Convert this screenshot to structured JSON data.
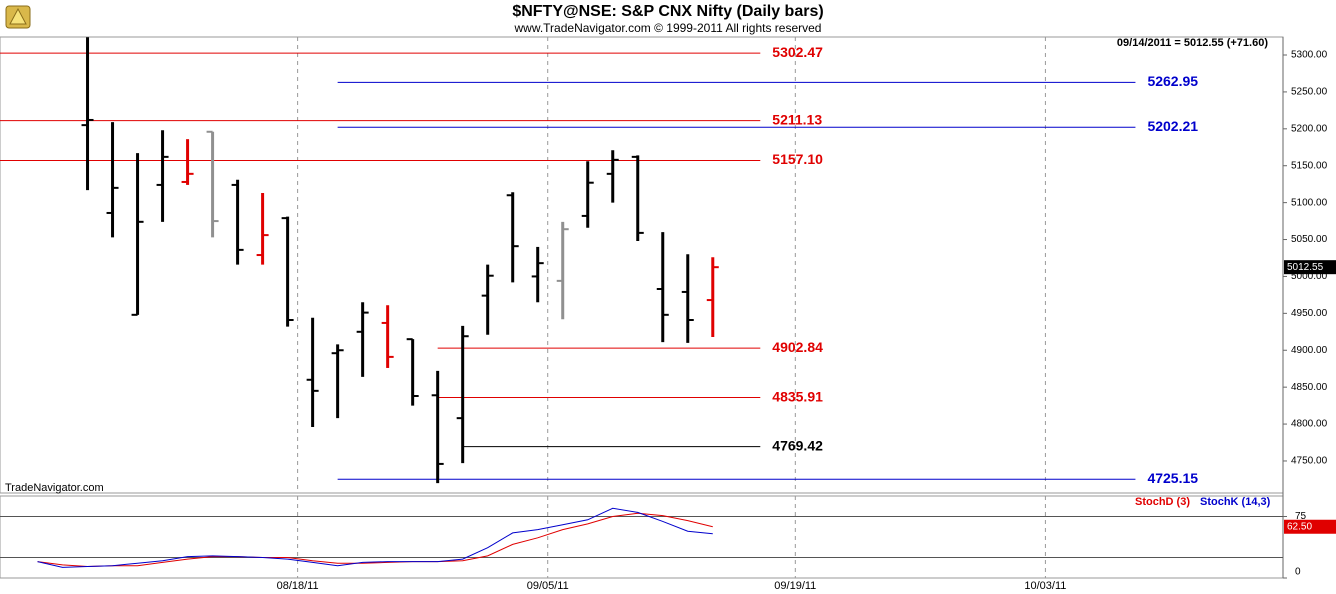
{
  "chart_data": [
    {
      "type": "ohlc",
      "title": "$NFTY@NSE:  S&P CNX Nifty  (Daily bars)",
      "subtitle": "www.TradeNavigator.com © 1999-2011 All rights reserved",
      "info": "09/14/2011 = 5012.55 (+71.60)",
      "watermark": "TradeNavigator.com",
      "x": [
        0,
        1,
        2,
        3,
        4,
        5,
        6,
        7,
        8,
        9,
        10,
        11,
        12,
        13,
        14,
        15,
        16,
        17,
        18,
        19,
        20,
        21,
        22,
        23,
        24,
        25
      ],
      "open": [
        5205,
        5086,
        4948,
        5124,
        5128,
        5196,
        5124,
        5029,
        5079,
        4860,
        4896,
        4925,
        4937,
        4915,
        4839,
        4808,
        4974,
        5110,
        5000,
        4994,
        5082,
        5139,
        5162,
        4983,
        4979,
        4968
      ],
      "high": [
        5324,
        5209,
        5167,
        5198,
        5186,
        5196,
        5131,
        5113,
        5081,
        4944,
        4908,
        4965,
        4961,
        4915,
        4872,
        4933,
        5016,
        5114,
        5040,
        5074,
        5156,
        5171,
        5164,
        5060,
        5030,
        5026
      ],
      "low": [
        5117,
        5053,
        4948,
        5074,
        5124,
        5053,
        5016,
        5016,
        4932,
        4796,
        4808,
        4864,
        4876,
        4825,
        4720,
        4747,
        4921,
        4992,
        4965,
        4942,
        5066,
        5100,
        5048,
        4911,
        4910,
        4918
      ],
      "close": [
        5212,
        5120,
        5074,
        5162,
        5139,
        5075,
        5036,
        5056,
        4941,
        4845,
        4900,
        4951,
        4891,
        4838,
        4746,
        4919,
        5001,
        5041,
        5018,
        5064,
        5127,
        5158,
        5059,
        4948,
        4941,
        5012.55
      ],
      "colors": [
        "#000000",
        "#000000",
        "#000000",
        "#000000",
        "#e00000",
        "#909090",
        "#000000",
        "#e00000",
        "#000000",
        "#000000",
        "#000000",
        "#000000",
        "#e00000",
        "#000000",
        "#000000",
        "#000000",
        "#000000",
        "#000000",
        "#000000",
        "#909090",
        "#000000",
        "#000000",
        "#000000",
        "#000000",
        "#000000",
        "#e00000"
      ],
      "last_price": {
        "value": 5012.55,
        "label": "5012.55"
      },
      "levels": [
        {
          "value": 5302.47,
          "label": "5302.47",
          "color": "#e00000",
          "x_range": [
            -3.5,
            26.9
          ]
        },
        {
          "value": 5262.95,
          "label": "5262.95",
          "color": "#0000cc",
          "x_range": [
            10,
            41.9
          ]
        },
        {
          "value": 5211.13,
          "label": "5211.13",
          "color": "#e00000",
          "x_range": [
            -3.5,
            26.9
          ]
        },
        {
          "value": 5202.21,
          "label": "5202.21",
          "color": "#0000cc",
          "x_range": [
            10,
            41.9
          ]
        },
        {
          "value": 5157.1,
          "label": "5157.10",
          "color": "#e00000",
          "x_range": [
            -3.5,
            26.9
          ]
        },
        {
          "value": 4902.84,
          "label": "4902.84",
          "color": "#e00000",
          "x_range": [
            14,
            26.9
          ]
        },
        {
          "value": 4835.91,
          "label": "4835.91",
          "color": "#e00000",
          "x_range": [
            14,
            26.9
          ]
        },
        {
          "value": 4769.42,
          "label": "4769.42",
          "color": "#000000",
          "x_range": [
            15,
            26.9
          ]
        },
        {
          "value": 4725.15,
          "label": "4725.15",
          "color": "#0000cc",
          "x_range": [
            10,
            41.9
          ]
        }
      ],
      "xlim": [
        -3.5,
        47.8
      ],
      "ylim": [
        4706.6,
        5324.4
      ],
      "yticks": [
        {
          "value": 4750,
          "label": "4750.00"
        },
        {
          "value": 4800,
          "label": "4800.00"
        },
        {
          "value": 4850,
          "label": "4850.00"
        },
        {
          "value": 4900,
          "label": "4900.00"
        },
        {
          "value": 4950,
          "label": "4950.00"
        },
        {
          "value": 5000,
          "label": "5000.00"
        },
        {
          "value": 5050,
          "label": "5050.00"
        },
        {
          "value": 5100,
          "label": "5100.00"
        },
        {
          "value": 5150,
          "label": "5150.00"
        },
        {
          "value": 5200,
          "label": "5200.00"
        },
        {
          "value": 5250,
          "label": "5250.00"
        },
        {
          "value": 5300,
          "label": "5300.00"
        }
      ]
    },
    {
      "type": "line",
      "x": [
        -2,
        -1,
        0,
        1,
        2,
        3,
        4,
        5,
        6,
        7,
        8,
        9,
        10,
        11,
        12,
        13,
        14,
        15,
        16,
        17,
        18,
        19,
        20,
        21,
        22,
        23,
        24,
        25
      ],
      "series": [
        {
          "name": "StochD (3)",
          "color": "#e00000",
          "values": [
            20,
            16,
            14,
            15,
            15,
            19,
            23,
            26,
            26,
            25,
            25,
            21,
            18,
            18,
            19,
            20,
            20,
            21,
            27,
            41,
            49,
            59,
            66,
            75,
            79,
            76,
            70,
            62.5
          ],
          "last_label": "62.50"
        },
        {
          "name": "StochK (14,3)",
          "color": "#0000cc",
          "values": [
            20,
            13,
            14,
            15,
            18,
            21,
            26,
            27,
            26,
            25,
            23,
            19,
            15,
            19,
            20,
            20,
            20,
            23,
            37,
            55,
            59,
            65,
            71,
            85,
            80,
            69,
            57,
            54
          ]
        }
      ],
      "levels": [
        75,
        25
      ],
      "xlim": [
        -3.5,
        47.8
      ],
      "ylim": [
        0,
        100
      ],
      "yticks": [
        0,
        75
      ],
      "xticks": [
        {
          "value": 8.4,
          "label": "08/18/11"
        },
        {
          "value": 18.4,
          "label": "09/05/11"
        },
        {
          "value": 28.3,
          "label": "09/19/11"
        },
        {
          "value": 38.3,
          "label": "10/03/11"
        }
      ],
      "grid": true
    }
  ]
}
